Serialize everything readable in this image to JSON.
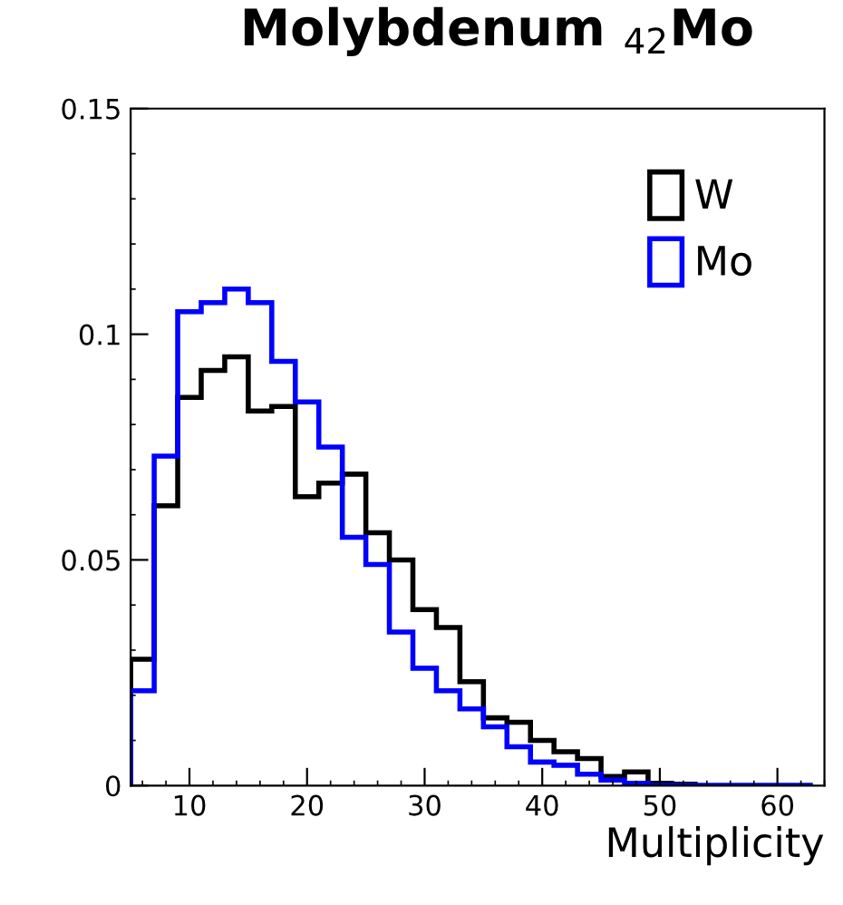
{
  "chart_data": {
    "type": "histogram",
    "title": "Molybdenum $_{42}$Mo",
    "xlabel": "Multiplicity",
    "bins": [
      5,
      7,
      9,
      11,
      13,
      15,
      17,
      19,
      21,
      23,
      25,
      27,
      29,
      31,
      33,
      35,
      37,
      39,
      41,
      43,
      45,
      47,
      49,
      51,
      53,
      55,
      57,
      59,
      61,
      63
    ],
    "series": [
      {
        "name": "W",
        "color": "#000000",
        "values": [
          0.028,
          0.062,
          0.086,
          0.092,
          0.095,
          0.083,
          0.084,
          0.064,
          0.067,
          0.069,
          0.056,
          0.05,
          0.039,
          0.035,
          0.023,
          0.015,
          0.014,
          0.01,
          0.0075,
          0.006,
          0.002,
          0.003,
          0.0005,
          0.0003,
          0,
          0,
          0,
          0,
          0
        ]
      },
      {
        "name": "Mo",
        "color": "#0000ff",
        "values": [
          0.021,
          0.073,
          0.105,
          0.107,
          0.11,
          0.107,
          0.094,
          0.085,
          0.075,
          0.055,
          0.049,
          0.034,
          0.026,
          0.021,
          0.017,
          0.013,
          0.0086,
          0.0052,
          0.0045,
          0.0025,
          0.0012,
          0.0005,
          0,
          0,
          0,
          0,
          0,
          0,
          0
        ]
      }
    ],
    "xlim": [
      5,
      64
    ],
    "ylim": [
      0,
      0.15
    ],
    "xticks": [
      10,
      20,
      30,
      40,
      50,
      60
    ],
    "yticks": [
      0,
      0.05,
      {
        "value": 0.1,
        "label": "0.1"
      },
      0.15
    ],
    "legend": "top right",
    "grid": false
  }
}
